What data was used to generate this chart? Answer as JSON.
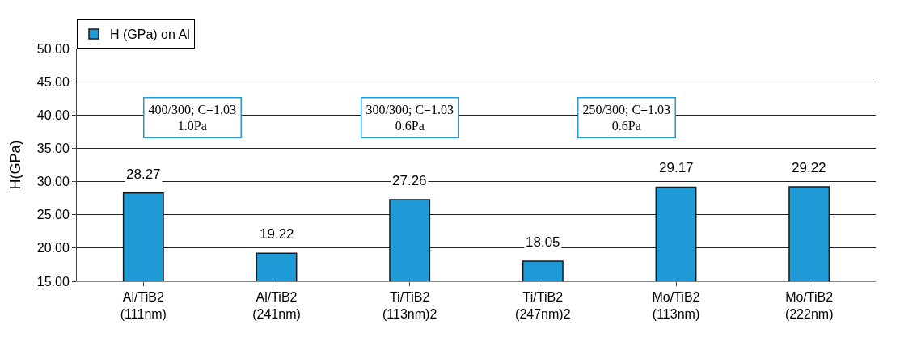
{
  "chart_data": {
    "type": "bar",
    "ylabel": "H(GPa)",
    "categories": [
      "Al/TiB2\n(111nm)",
      "Al/TiB2\n(241nm)",
      "Ti/TiB2\n(113nm)2",
      "Ti/TiB2\n(247nm)2",
      "Mo/TiB2\n(113nm)",
      "Mo/TiB2\n(222nm)"
    ],
    "series": [
      {
        "name": "H (GPa) on Al",
        "color": "#1e9ad6",
        "values": [
          28.27,
          19.22,
          27.26,
          18.05,
          29.17,
          29.22
        ]
      }
    ],
    "data_labels": true,
    "ylim": [
      15,
      50
    ],
    "yticks": [
      {
        "value": 15,
        "label": "15.00"
      },
      {
        "value": 20,
        "label": "20.00"
      },
      {
        "value": 25,
        "label": "25.00"
      },
      {
        "value": 30,
        "label": "30.00"
      },
      {
        "value": 35,
        "label": "35.00"
      },
      {
        "value": 40,
        "label": "40.00"
      },
      {
        "value": 45,
        "label": "45.00"
      },
      {
        "value": 50,
        "label": "50.00"
      }
    ],
    "grid": "y",
    "legend": "top left",
    "annotations": [
      "400/300; C=1.03\n1.0Pa",
      "300/300; C=1.03\n0.6Pa",
      "250/300; C=1.03\n0.6Pa"
    ]
  }
}
